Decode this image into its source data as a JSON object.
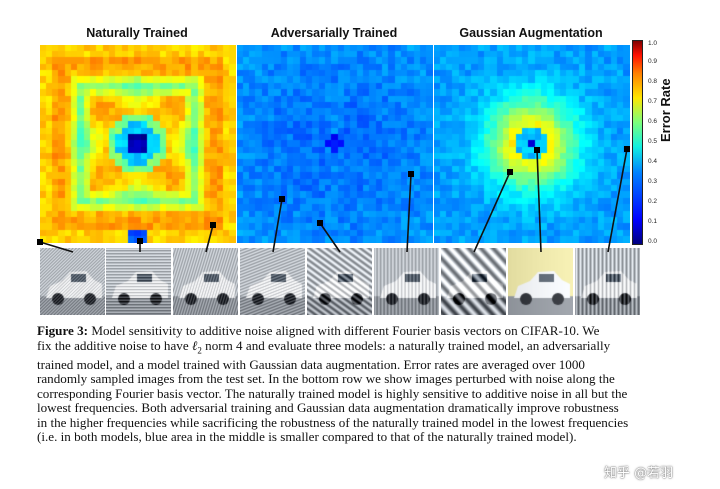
{
  "panels": [
    {
      "title": "Naturally Trained"
    },
    {
      "title": "Adversarially Trained"
    },
    {
      "title": "Gaussian Augmentation"
    }
  ],
  "colorbar": {
    "label": "Error Rate",
    "ticks": [
      "1.0",
      "0.9",
      "0.8",
      "0.7",
      "0.6",
      "0.5",
      "0.4",
      "0.3",
      "0.2",
      "0.1",
      "0.0"
    ]
  },
  "caption": {
    "label": "Figure 3:",
    "l1": "Model sensitivity to additive noise aligned with different Fourier basis vectors on CIFAR-10. We",
    "l2_a": "fix the additive noise to have ",
    "l2_ell": "ℓ",
    "l2_sub": "2",
    "l2_b": " norm 4 and evaluate three models: a naturally trained model, an adversarially",
    "l3": "trained model, and a model trained with Gaussian data augmentation.  Error rates are averaged over 1000",
    "l4": "randomly sampled images from the test set. In the bottom row we show images perturbed with noise along the",
    "l5": "corresponding Fourier basis vector. The naturally trained model is highly sensitive to additive noise in all but the",
    "l6": "lowest frequencies. Both adversarial training and Gaussian data augmentation dramatically improve robustness",
    "l7": "in the higher frequencies while sacrificing the robustness of the naturally trained model in the lowest frequencies",
    "l8": "(i.e. in both models, blue area in the middle is smaller compared to that of the naturally trained model)."
  },
  "watermark": "知乎 @若羽"
}
